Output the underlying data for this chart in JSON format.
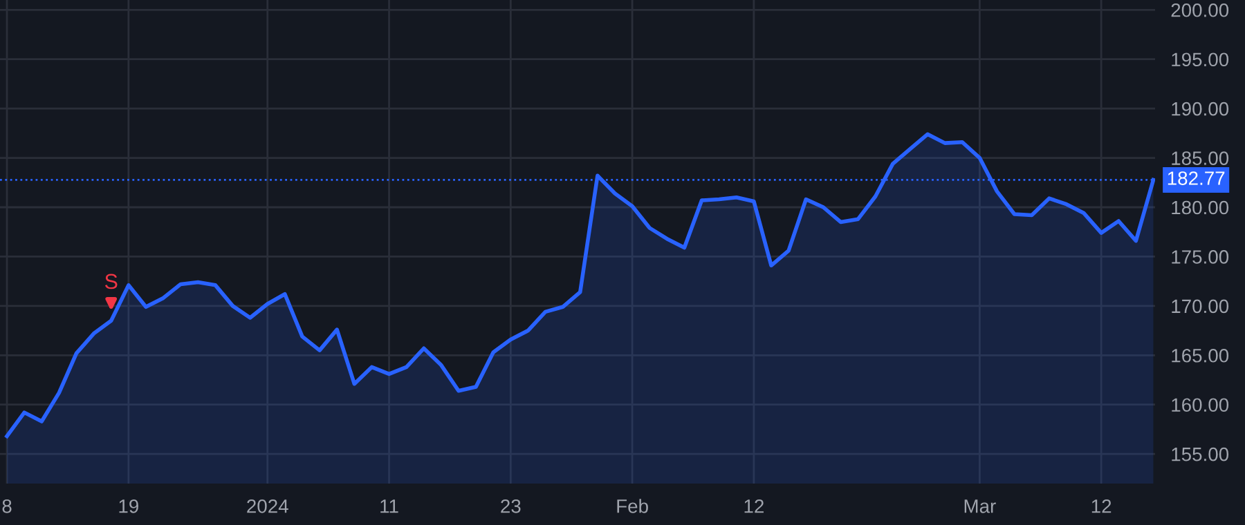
{
  "chart_data": {
    "type": "area",
    "categories": [
      "8",
      null,
      null,
      null,
      null,
      null,
      null,
      "19",
      null,
      null,
      null,
      null,
      null,
      null,
      null,
      "2024",
      null,
      null,
      null,
      null,
      null,
      null,
      "11",
      null,
      null,
      null,
      null,
      null,
      null,
      "23",
      null,
      null,
      null,
      null,
      null,
      null,
      "Feb",
      null,
      null,
      null,
      null,
      null,
      null,
      "12",
      null,
      null,
      null,
      null,
      null,
      null,
      null,
      null,
      null,
      null,
      null,
      null,
      "Mar",
      null,
      null,
      null,
      null,
      null,
      null,
      "12",
      null,
      null,
      null
    ],
    "series": [
      {
        "color": "#2962ff",
        "values": [
          156.8,
          159.2,
          158.3,
          161.2,
          165.2,
          167.2,
          168.5,
          172.1,
          169.9,
          170.8,
          172.2,
          172.4,
          172.1,
          170.0,
          168.8,
          170.2,
          171.2,
          166.9,
          165.5,
          167.6,
          162.1,
          163.8,
          163.1,
          163.8,
          165.7,
          164.0,
          161.4,
          161.8,
          165.3,
          166.6,
          167.5,
          169.4,
          169.9,
          171.4,
          183.2,
          181.4,
          180.1,
          177.9,
          176.8,
          175.9,
          180.7,
          180.8,
          181.0,
          180.6,
          174.1,
          175.6,
          180.8,
          180.0,
          178.5,
          178.8,
          181.1,
          184.4,
          185.9,
          187.4,
          186.5,
          186.6,
          185.0,
          181.6,
          179.3,
          179.2,
          180.9,
          180.3,
          179.4,
          177.4,
          178.6,
          176.6,
          182.77
        ]
      }
    ],
    "ylim": [
      152,
      201
    ],
    "yticks": [
      {
        "value": 155,
        "label": "155.00"
      },
      {
        "value": 160,
        "label": "160.00"
      },
      {
        "value": 165,
        "label": "165.00"
      },
      {
        "value": 170,
        "label": "170.00"
      },
      {
        "value": 175,
        "label": "175.00"
      },
      {
        "value": 180,
        "label": "180.00"
      },
      {
        "value": 185,
        "label": "185.00"
      },
      {
        "value": 190,
        "label": "190.00"
      },
      {
        "value": 195,
        "label": "195.00"
      },
      {
        "value": 200,
        "label": "200.00"
      }
    ],
    "grid": true,
    "ref_lines": [
      {
        "axis": "y",
        "value": 182.77,
        "label": "182.77",
        "color": "#2962ff",
        "line_style": "dotted"
      }
    ],
    "annotations": [
      {
        "text": "S",
        "y": 168.5
      }
    ]
  }
}
